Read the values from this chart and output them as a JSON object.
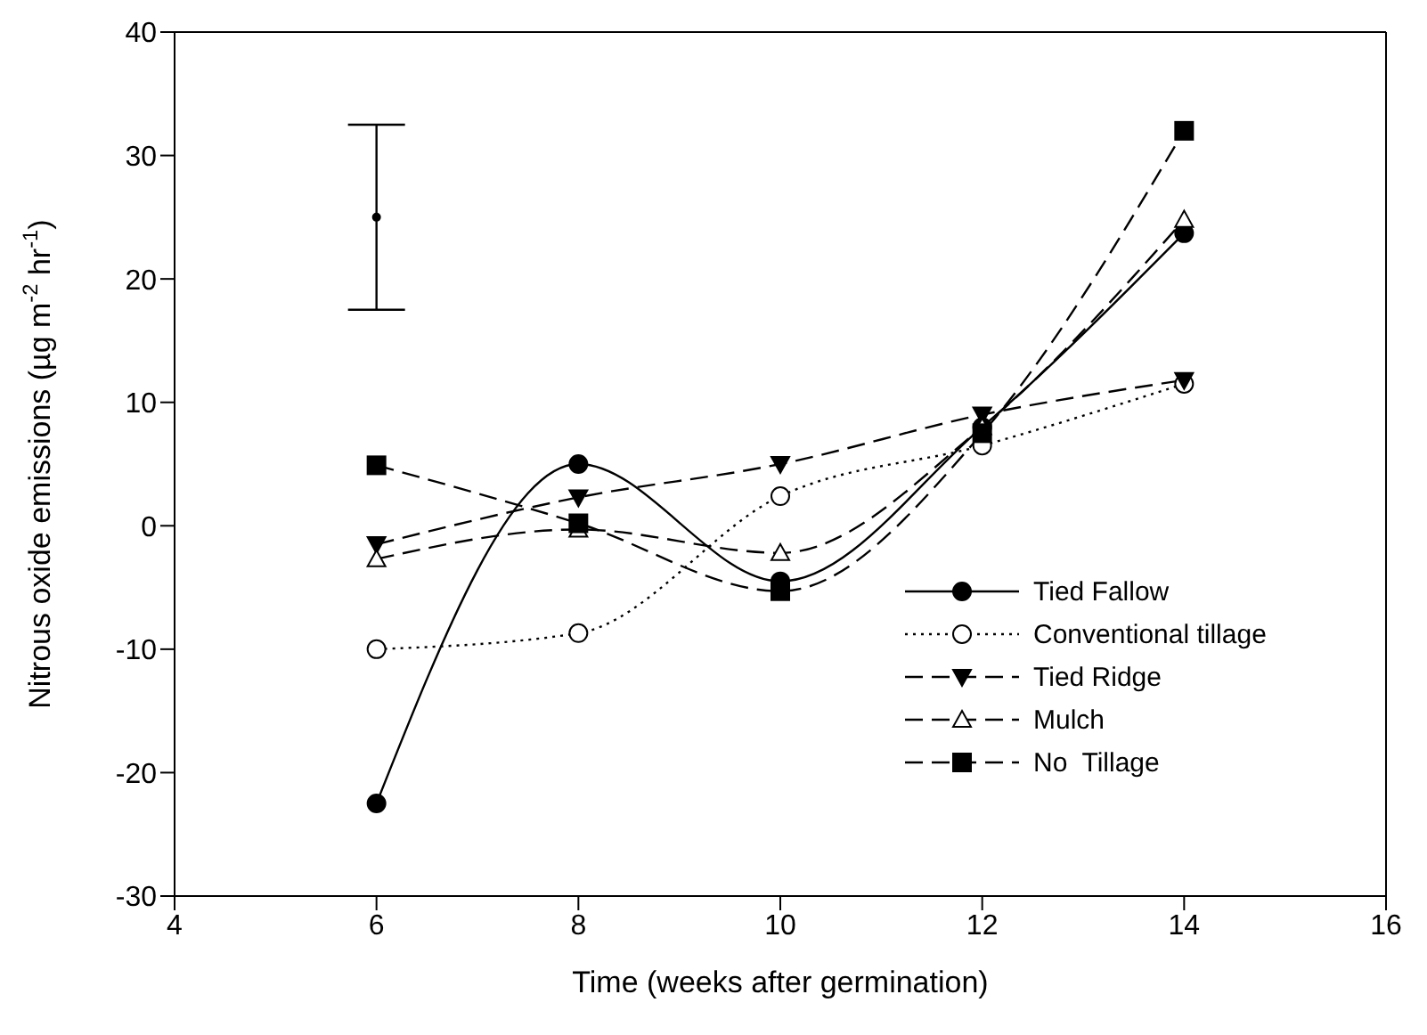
{
  "chart_data": {
    "type": "line",
    "xlabel": "Time (weeks after germination)",
    "ylabel": "Nitrous oxide emissions (µg m$^{-2}$ hr$^{-1}$)",
    "x": [
      6,
      8,
      10,
      12,
      14
    ],
    "xlim": [
      4,
      16
    ],
    "xticks": [
      4,
      6,
      8,
      10,
      12,
      14,
      16
    ],
    "ylim": [
      -30,
      40
    ],
    "yticks": [
      -30,
      -20,
      -10,
      0,
      10,
      20,
      30,
      40
    ],
    "grid": false,
    "legend": "bottom right",
    "series": [
      {
        "name": "Tied Fallow",
        "color": "#000000",
        "values": [
          -22.5,
          5,
          -4.5,
          8,
          23.7
        ],
        "marker": "circle",
        "line_style": "solid"
      },
      {
        "name": "Conventional tillage",
        "color": "#000000",
        "values": [
          -10,
          -8.7,
          2.4,
          6.5,
          11.5
        ],
        "marker": "circle-open",
        "line_style": "dotted"
      },
      {
        "name": "Tied Ridge",
        "color": "#000000",
        "values": [
          -1.5,
          2.3,
          5,
          9,
          11.8
        ],
        "marker": "triangle-down",
        "line_style": "dashed"
      },
      {
        "name": "Mulch",
        "color": "#000000",
        "values": [
          -2.7,
          -0.3,
          -2.2,
          8,
          24.8
        ],
        "marker": "triangle-open",
        "line_style": "dashed"
      },
      {
        "name": "No  Tillage",
        "color": "#000000",
        "values": [
          4.9,
          0.2,
          -5.3,
          7.5,
          32
        ],
        "marker": "square",
        "line_style": "dashed"
      },
      {
        "type": "scatter",
        "color": "#000000",
        "x": [
          6
        ],
        "values": [
          25
        ],
        "errors": [
          7.5
        ],
        "marker": "circle"
      }
    ]
  }
}
